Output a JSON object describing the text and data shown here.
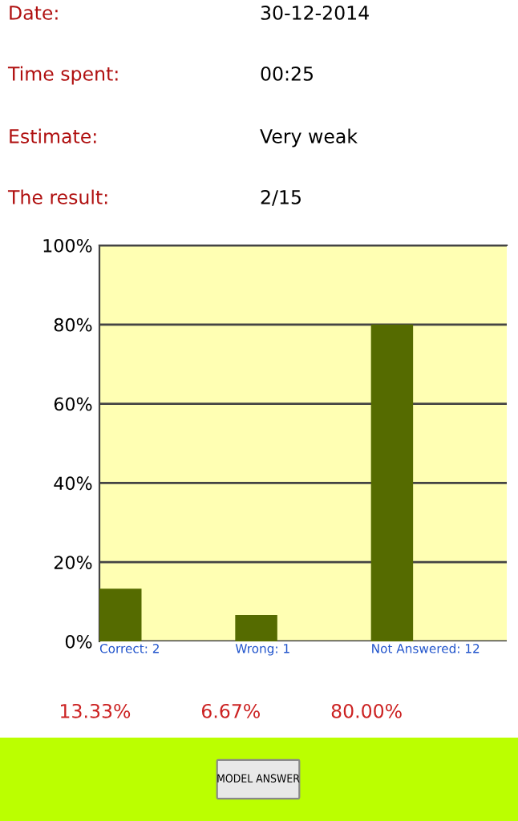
{
  "chart_data": {
    "type": "bar",
    "annotations": [
      "Date:",
      "30-12-2014",
      "Time spent:",
      "00:25",
      "Estimate:",
      "Very weak",
      "The result:",
      "2/15",
      "MODEL ANSWER"
    ],
    "categories": [
      "Correct: 2",
      "Wrong: 1",
      "Not Answered: 12"
    ],
    "values": [
      13.33,
      6.67,
      80.0
    ],
    "value_labels": [
      "13.33%",
      "6.67%",
      "80.00%"
    ],
    "color": "#556b00",
    "ylim": [
      0,
      100
    ],
    "yticks": [
      {
        "value": 0,
        "label": "0%"
      },
      {
        "value": 20,
        "label": "20%"
      },
      {
        "value": 40,
        "label": "40%"
      },
      {
        "value": 60,
        "label": "60%"
      },
      {
        "value": 80,
        "label": "80%"
      },
      {
        "value": 100,
        "label": "100%"
      }
    ],
    "grid": "y",
    "legend": false
  }
}
